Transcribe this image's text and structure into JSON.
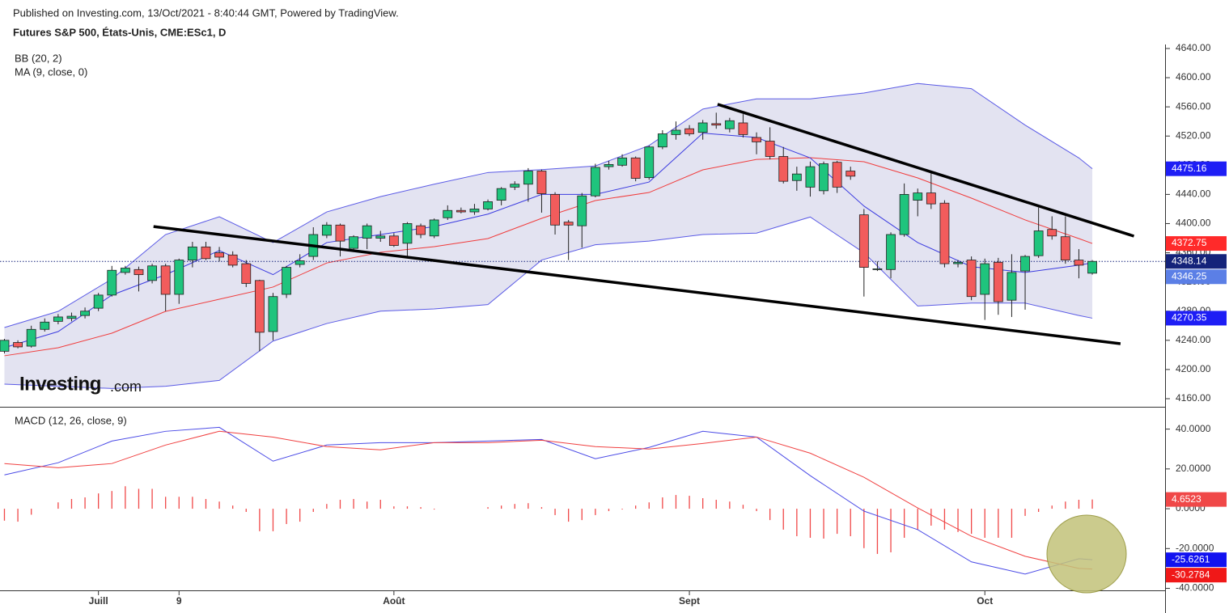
{
  "header": "Published on Investing.com, 13/Oct/2021 - 8:40:44 GMT, Powered by TradingView.",
  "logo": {
    "name": "Investing",
    "suffix": ".com"
  },
  "chart_data": [
    {
      "type": "candlestick",
      "title": "Futures S&P 500, États-Unis, CME:ESc1, D",
      "categories": [
        null,
        null,
        null,
        null,
        null,
        null,
        null,
        "Juill",
        null,
        null,
        null,
        null,
        null,
        "9",
        null,
        null,
        null,
        null,
        null,
        null,
        null,
        null,
        null,
        null,
        null,
        null,
        null,
        null,
        null,
        "Août",
        null,
        null,
        null,
        null,
        null,
        null,
        null,
        null,
        null,
        null,
        null,
        null,
        null,
        null,
        null,
        null,
        null,
        null,
        null,
        null,
        null,
        "Sept",
        null,
        null,
        null,
        null,
        null,
        null,
        null,
        null,
        null,
        null,
        null,
        null,
        null,
        null,
        null,
        null,
        null,
        null,
        null,
        null,
        null,
        "Oct",
        null,
        null,
        null,
        null,
        null,
        null,
        null,
        null
      ],
      "open": [
        4225,
        4237,
        4232,
        4255,
        4266,
        4270,
        4274,
        4284,
        4302,
        4333,
        4337,
        4322,
        4342,
        4303,
        4350,
        4368,
        4360,
        4357,
        4345,
        4322,
        4252,
        4303,
        4344,
        4355,
        4384,
        4398,
        4366,
        4380,
        4380,
        4383,
        4373,
        4397,
        4383,
        4408,
        4418,
        4416,
        4420,
        4432,
        4450,
        4454,
        4472,
        4440,
        4402,
        4397,
        4438,
        4478,
        4480,
        4490,
        4463,
        4505,
        4522,
        4530,
        4525,
        4537,
        4530,
        4538,
        4518,
        4513,
        4492,
        4459,
        4450,
        4445,
        4484,
        4472,
        4412,
        4337,
        4337,
        4385,
        4432,
        4442,
        4428,
        4345,
        4350,
        4303,
        4347,
        4295,
        4335,
        4356,
        4392,
        4382,
        4350,
        4332
      ],
      "high": [
        4242,
        4240,
        4260,
        4270,
        4276,
        4278,
        4285,
        4305,
        4342,
        4342,
        4341,
        4345,
        4345,
        4352,
        4375,
        4375,
        4368,
        4362,
        4350,
        4323,
        4305,
        4342,
        4358,
        4395,
        4402,
        4400,
        4384,
        4400,
        4390,
        4387,
        4402,
        4400,
        4407,
        4425,
        4422,
        4427,
        4433,
        4450,
        4458,
        4476,
        4474,
        4443,
        4405,
        4442,
        4482,
        4486,
        4495,
        4492,
        4507,
        4528,
        4540,
        4535,
        4542,
        4552,
        4545,
        4550,
        4525,
        4532,
        4505,
        4478,
        4485,
        4485,
        4486,
        4478,
        4420,
        4348,
        4388,
        4455,
        4448,
        4470,
        4432,
        4350,
        4355,
        4352,
        4353,
        4358,
        4357,
        4422,
        4410,
        4410,
        4365,
        4350
      ],
      "low": [
        4222,
        4229,
        4230,
        4252,
        4262,
        4266,
        4270,
        4280,
        4300,
        4330,
        4307,
        4318,
        4280,
        4290,
        4340,
        4350,
        4348,
        4340,
        4313,
        4225,
        4240,
        4298,
        4340,
        4350,
        4380,
        4355,
        4362,
        4365,
        4375,
        4368,
        4355,
        4380,
        4380,
        4405,
        4414,
        4412,
        4418,
        4425,
        4446,
        4430,
        4415,
        4385,
        4350,
        4367,
        4436,
        4474,
        4478,
        4458,
        4460,
        4502,
        4515,
        4520,
        4515,
        4530,
        4525,
        4518,
        4495,
        4488,
        4455,
        4445,
        4437,
        4440,
        4442,
        4460,
        4300,
        4335,
        4325,
        4382,
        4410,
        4420,
        4340,
        4340,
        4295,
        4268,
        4275,
        4272,
        4282,
        4353,
        4378,
        4345,
        4325,
        4330
      ],
      "close": [
        4240,
        4231,
        4255,
        4265,
        4272,
        4273,
        4280,
        4302,
        4336,
        4339,
        4330,
        4342,
        4303,
        4350,
        4368,
        4352,
        4354,
        4343,
        4318,
        4251,
        4300,
        4340,
        4349,
        4385,
        4398,
        4376,
        4382,
        4397,
        4383,
        4370,
        4400,
        4385,
        4405,
        4418,
        4416,
        4420,
        4430,
        4448,
        4454,
        4472,
        4441,
        4398,
        4398,
        4438,
        4477,
        4481,
        4490,
        4462,
        4505,
        4523,
        4528,
        4523,
        4538,
        4535,
        4541,
        4522,
        4512,
        4492,
        4458,
        4468,
        4478,
        4482,
        4450,
        4465,
        4340,
        4338,
        4385,
        4440,
        4442,
        4427,
        4345,
        4347,
        4300,
        4345,
        4293,
        4333,
        4355,
        4390,
        4383,
        4350,
        4343,
        4348.14
      ],
      "up_color": "#1fc47d",
      "down_color": "#f25c5c",
      "last_price_color": "#14237a",
      "xlim": [
        -0.33,
        86.42
      ],
      "ylim": [
        4148.9,
        4645.5
      ],
      "yticks": [
        {
          "value": 4160,
          "label": "4160.00"
        },
        {
          "value": 4200,
          "label": "4200.00"
        },
        {
          "value": 4240,
          "label": "4240.00"
        },
        {
          "value": 4280,
          "label": "4280.00"
        },
        {
          "value": 4320,
          "label": "4320.00"
        },
        {
          "value": 4360,
          "label": "4360.00"
        },
        {
          "value": 4400,
          "label": "4400.00"
        },
        {
          "value": 4440,
          "label": "4440.00"
        },
        {
          "value": 4480,
          "label": "4480.00"
        },
        {
          "value": 4520,
          "label": "4520.00"
        },
        {
          "value": 4560,
          "label": "4560.00"
        },
        {
          "value": 4600,
          "label": "4600.00"
        },
        {
          "value": 4640,
          "label": "4640.00"
        }
      ],
      "grid": false,
      "indicators": [
        {
          "name": "BB (20, 2)",
          "x": [
            0,
            4,
            8,
            12,
            16,
            20,
            24,
            28,
            32,
            36,
            40,
            44,
            48,
            52,
            56,
            60,
            64,
            68,
            72,
            76,
            80,
            81
          ],
          "upper": [
            4257.5,
            4279.7,
            4324,
            4385,
            4409.4,
            4374,
            4416,
            4437,
            4454,
            4470,
            4474,
            4479,
            4507,
            4557,
            4571,
            4571,
            4579,
            4592,
            4585,
            4535,
            4490,
            4475.16
          ],
          "basis": [
            4218.8,
            4229.8,
            4249.8,
            4279.7,
            4296.3,
            4313,
            4346,
            4360.6,
            4368.4,
            4379.5,
            4407.2,
            4431.6,
            4442.6,
            4473.7,
            4488,
            4490.3,
            4484.8,
            4462.6,
            4434.9,
            4405,
            4379.5,
            4372.75
          ],
          "lower": [
            4180,
            4177,
            4174,
            4177,
            4185,
            4239,
            4263,
            4280,
            4283,
            4289,
            4350,
            4371,
            4376,
            4385,
            4387,
            4409,
            4360,
            4287,
            4291,
            4291,
            4274,
            4270.35
          ],
          "band_color": "#5b5be6",
          "basis_color": "#f03c3c",
          "fill": "#e3e3f1"
        },
        {
          "name": "MA (9, close, 0)",
          "x": [
            0,
            4,
            8,
            12,
            16,
            20,
            24,
            28,
            32,
            36,
            40,
            44,
            48,
            52,
            56,
            60,
            64,
            68,
            72,
            76,
            80,
            81
          ],
          "values": [
            4230,
            4252,
            4302,
            4330,
            4363,
            4330,
            4374,
            4385,
            4396,
            4413,
            4440,
            4440,
            4457,
            4524,
            4518,
            4490,
            4424,
            4374,
            4341,
            4333,
            4343,
            4346.25
          ],
          "color": "#3b3be0",
          "box_color": "#5b7fe6"
        }
      ],
      "trendlines": [
        {
          "x": [
            53.1,
            84.1
          ],
          "y": [
            4563.5,
            4382.8
          ]
        },
        {
          "x": [
            11.1,
            83.1
          ],
          "y": [
            4396,
            4235.4
          ]
        }
      ]
    },
    {
      "type": "macd",
      "title": "MACD (12, 26, close, 9)",
      "ylim": [
        -41,
        50.4
      ],
      "yticks": [
        {
          "value": 40,
          "label": "40.0000"
        },
        {
          "value": 20,
          "label": "20.0000"
        },
        {
          "value": 0,
          "label": "0.0000"
        },
        {
          "value": -20,
          "label": "-20.0000"
        },
        {
          "value": -40,
          "label": "-40.0000"
        }
      ],
      "histogram": {
        "color": "#f04848",
        "values": [
          -6,
          -6.5,
          -3,
          0,
          3.2,
          4.9,
          5.7,
          7.7,
          8.9,
          11.3,
          10,
          10,
          6,
          6,
          6,
          4.9,
          3.6,
          1.6,
          -1.6,
          -11.3,
          -11.3,
          -7.7,
          -6.5,
          -1.6,
          2.4,
          4.5,
          4.9,
          3.6,
          4.5,
          1.2,
          1.2,
          0.8,
          -0.4,
          0,
          0,
          0,
          0.8,
          1.6,
          2.4,
          2.8,
          0.8,
          -3.2,
          -6.5,
          -5.7,
          -3.2,
          -1.2,
          -0.4,
          1.6,
          3.2,
          5.7,
          6.9,
          6.5,
          5.3,
          4.5,
          3.6,
          2,
          -1.2,
          -5.7,
          -10.5,
          -13.8,
          -14.6,
          -15,
          -12.6,
          -13.8,
          -19.8,
          -22.7,
          -21.9,
          -14.6,
          -10.5,
          -8.5,
          -10.5,
          -11.7,
          -12.6,
          -14.6,
          -14.6,
          -14.6,
          -3.6,
          -1.6,
          1.6,
          3.6,
          4.5,
          4.6523
        ]
      },
      "x": [
        0,
        4,
        8,
        12,
        16,
        20,
        24,
        28,
        32,
        36,
        40,
        44,
        48,
        52,
        56,
        60,
        64,
        68,
        72,
        76,
        80,
        81
      ],
      "series": [
        {
          "color": "#4a4ae6",
          "box_color": "#1212f0",
          "values": [
            17.0,
            23.1,
            34.0,
            38.9,
            40.9,
            23.9,
            32.0,
            33.2,
            33.2,
            34.0,
            34.8,
            25.1,
            30.8,
            38.9,
            36.0,
            16.6,
            -1.2,
            -10.5,
            -26.7,
            -32.8,
            -25.1,
            -25.6261
          ]
        },
        {
          "color": "#f04040",
          "box_color": "#f01818",
          "values": [
            22.7,
            20.6,
            22.7,
            32,
            38.9,
            36,
            31.2,
            29.6,
            33.2,
            33.2,
            34.4,
            31.2,
            30,
            32.8,
            36,
            27.9,
            15.8,
            0.4,
            -13.8,
            -23.9,
            -30,
            -30.2784
          ]
        }
      ]
    }
  ]
}
